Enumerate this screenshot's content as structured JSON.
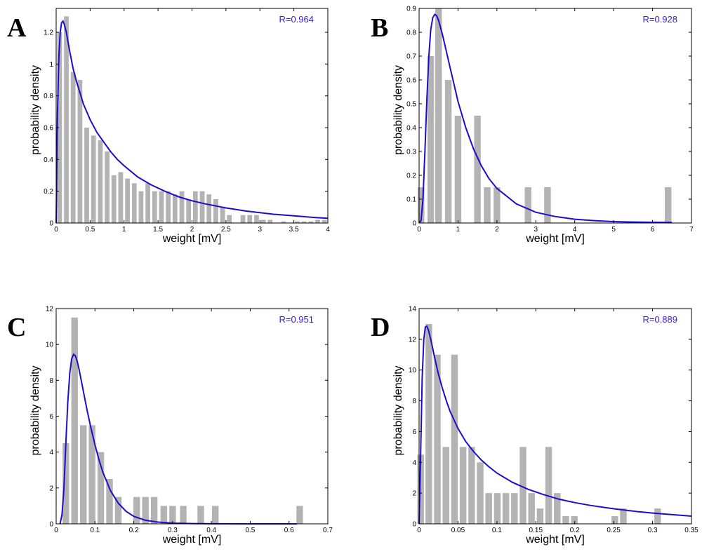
{
  "colors": {
    "bar": "#b3b3b3",
    "curve": "#1a0dcc",
    "annotation": "#3a1ae0",
    "axis": "#000000"
  },
  "chart_data": [
    {
      "id": "A",
      "type": "bar",
      "panel_label": "A",
      "annotation": "R=0.964",
      "xlabel": "weight [mV]",
      "ylabel": "probability density",
      "xlim": [
        0,
        4
      ],
      "ylim": [
        0,
        1.35
      ],
      "xticks": [
        0,
        0.5,
        1,
        1.5,
        2,
        2.5,
        3,
        3.5,
        4
      ],
      "xtick_labels": [
        "0",
        "0.5",
        "1",
        "1.5",
        "2",
        "2.5",
        "3",
        "3.5",
        "4"
      ],
      "yticks": [
        0,
        0.2,
        0.4,
        0.6,
        0.8,
        1,
        1.2
      ],
      "ytick_labels": [
        "0",
        "0.2",
        "0.4",
        "0.6",
        "0.8",
        "1",
        "1.2"
      ],
      "bar_width": 0.07,
      "bars_x": [
        0.05,
        0.15,
        0.25,
        0.35,
        0.45,
        0.55,
        0.65,
        0.75,
        0.85,
        0.95,
        1.05,
        1.15,
        1.25,
        1.35,
        1.45,
        1.55,
        1.65,
        1.75,
        1.85,
        1.95,
        2.05,
        2.15,
        2.25,
        2.35,
        2.45,
        2.55,
        2.65,
        2.75,
        2.85,
        2.95,
        3.05,
        3.15,
        3.25,
        3.35,
        3.45,
        3.55,
        3.65,
        3.75,
        3.85,
        3.95
      ],
      "bars_y": [
        1.2,
        1.3,
        0.95,
        0.9,
        0.6,
        0.55,
        0.52,
        0.45,
        0.3,
        0.32,
        0.28,
        0.25,
        0.2,
        0.25,
        0.2,
        0.2,
        0.2,
        0.18,
        0.2,
        0.15,
        0.2,
        0.2,
        0.18,
        0.15,
        0.1,
        0.05,
        0,
        0.05,
        0.05,
        0.05,
        0.02,
        0.02,
        0,
        0.01,
        0,
        0.01,
        0.01,
        0.01,
        0.02,
        0.02
      ],
      "curve": {
        "x": [
          0,
          0.02,
          0.04,
          0.06,
          0.08,
          0.1,
          0.12,
          0.15,
          0.2,
          0.25,
          0.3,
          0.35,
          0.4,
          0.5,
          0.6,
          0.7,
          0.8,
          0.9,
          1,
          1.2,
          1.4,
          1.6,
          1.8,
          2,
          2.2,
          2.5,
          2.8,
          3,
          3.2,
          3.5,
          3.8,
          4
        ],
        "y": [
          0,
          0.7,
          1.05,
          1.2,
          1.26,
          1.27,
          1.25,
          1.2,
          1.08,
          0.97,
          0.89,
          0.82,
          0.75,
          0.65,
          0.57,
          0.51,
          0.45,
          0.4,
          0.36,
          0.29,
          0.24,
          0.2,
          0.165,
          0.14,
          0.12,
          0.095,
          0.075,
          0.065,
          0.055,
          0.045,
          0.035,
          0.03
        ]
      }
    },
    {
      "id": "B",
      "type": "bar",
      "panel_label": "B",
      "annotation": "R=0.928",
      "xlabel": "weight [mV]",
      "ylabel": "probability density",
      "xlim": [
        0,
        7
      ],
      "ylim": [
        0,
        0.9
      ],
      "xticks": [
        0,
        1,
        2,
        3,
        4,
        5,
        6,
        7
      ],
      "xtick_labels": [
        "0",
        "1",
        "2",
        "3",
        "4",
        "5",
        "6",
        "7"
      ],
      "yticks": [
        0,
        0.1,
        0.2,
        0.3,
        0.4,
        0.5,
        0.6,
        0.7,
        0.8,
        0.9
      ],
      "ytick_labels": [
        "0",
        "0.1",
        "0.2",
        "0.3",
        "0.4",
        "0.5",
        "0.6",
        "0.7",
        "0.8",
        "0.9"
      ],
      "bar_width": 0.17,
      "bars_x": [
        0.05,
        0.3,
        0.5,
        0.75,
        1.0,
        1.5,
        1.75,
        2.0,
        2.8,
        3.3,
        6.4
      ],
      "bars_y": [
        0.15,
        0.7,
        0.9,
        0.6,
        0.45,
        0.45,
        0.15,
        0.15,
        0.15,
        0.15,
        0.15
      ],
      "curve": {
        "x": [
          0,
          0.05,
          0.1,
          0.15,
          0.2,
          0.25,
          0.3,
          0.35,
          0.4,
          0.45,
          0.5,
          0.6,
          0.7,
          0.8,
          0.9,
          1.0,
          1.2,
          1.4,
          1.6,
          1.8,
          2.0,
          2.5,
          3.0,
          3.5,
          4.0,
          4.5,
          5.0,
          5.5,
          6.0,
          6.5
        ],
        "y": [
          0,
          0.01,
          0.1,
          0.3,
          0.52,
          0.7,
          0.81,
          0.86,
          0.875,
          0.87,
          0.85,
          0.79,
          0.72,
          0.65,
          0.58,
          0.51,
          0.4,
          0.31,
          0.24,
          0.185,
          0.145,
          0.08,
          0.045,
          0.027,
          0.016,
          0.01,
          0.006,
          0.004,
          0.003,
          0.002
        ]
      }
    },
    {
      "id": "C",
      "type": "bar",
      "panel_label": "C",
      "annotation": "R=0.951",
      "xlabel": "weight [mV]",
      "ylabel": "probability density",
      "xlim": [
        0,
        0.7
      ],
      "ylim": [
        0,
        12
      ],
      "xticks": [
        0,
        0.1,
        0.2,
        0.3,
        0.4,
        0.5,
        0.6,
        0.7
      ],
      "xtick_labels": [
        "0",
        "0.1",
        "0.2",
        "0.3",
        "0.4",
        "0.5",
        "0.6",
        "0.7"
      ],
      "yticks": [
        0,
        2,
        4,
        6,
        8,
        10,
        12
      ],
      "ytick_labels": [
        "0",
        "2",
        "4",
        "6",
        "8",
        "10",
        "12"
      ],
      "bar_width": 0.017,
      "bars_x": [
        0.025,
        0.0475,
        0.07,
        0.0925,
        0.115,
        0.1375,
        0.16,
        0.2075,
        0.23,
        0.2525,
        0.2775,
        0.3,
        0.3275,
        0.3725,
        0.41,
        0.6275
      ],
      "bars_y": [
        4.5,
        11.5,
        5.5,
        5.5,
        4,
        2.5,
        1.5,
        1.5,
        1.5,
        1.5,
        1,
        1,
        1,
        1,
        1,
        1
      ],
      "curve": {
        "x": [
          0.01,
          0.015,
          0.02,
          0.025,
          0.03,
          0.035,
          0.04,
          0.045,
          0.05,
          0.055,
          0.06,
          0.07,
          0.08,
          0.09,
          0.1,
          0.11,
          0.12,
          0.14,
          0.16,
          0.18,
          0.2,
          0.23,
          0.26,
          0.3,
          0.35,
          0.4,
          0.5,
          0.62
        ],
        "y": [
          0,
          0.5,
          2,
          4.5,
          6.8,
          8.4,
          9.2,
          9.45,
          9.35,
          9.0,
          8.5,
          7.4,
          6.3,
          5.3,
          4.4,
          3.6,
          2.9,
          1.85,
          1.15,
          0.7,
          0.42,
          0.2,
          0.1,
          0.04,
          0.015,
          0.005,
          0.001,
          0.0
        ]
      }
    },
    {
      "id": "D",
      "type": "bar",
      "panel_label": "D",
      "annotation": "R=0.889",
      "xlabel": "weight [mV]",
      "ylabel": "probability density",
      "xlim": [
        0,
        0.35
      ],
      "ylim": [
        0,
        14
      ],
      "xticks": [
        0,
        0.05,
        0.1,
        0.15,
        0.2,
        0.25,
        0.3,
        0.35
      ],
      "xtick_labels": [
        "0",
        "0.05",
        "0.1",
        "0.15",
        "0.2",
        "0.25",
        "0.3",
        "0.35"
      ],
      "yticks": [
        0,
        2,
        4,
        6,
        8,
        10,
        12,
        14
      ],
      "ytick_labels": [
        "0",
        "2",
        "4",
        "6",
        "8",
        "10",
        "12",
        "14"
      ],
      "bar_width": 0.0085,
      "bars_x": [
        0.002,
        0.0125,
        0.0235,
        0.0345,
        0.0455,
        0.0565,
        0.0675,
        0.0785,
        0.0895,
        0.1005,
        0.1115,
        0.1225,
        0.1335,
        0.1445,
        0.1555,
        0.1665,
        0.1775,
        0.1885,
        0.1995,
        0.2515,
        0.2625,
        0.3065
      ],
      "bars_y": [
        4.5,
        13,
        11,
        5,
        11,
        5,
        5,
        4,
        2,
        2,
        2,
        2,
        5,
        2,
        1,
        5,
        2,
        0.5,
        0.5,
        0.5,
        1,
        1
      ],
      "curve": {
        "x": [
          0,
          0.002,
          0.004,
          0.006,
          0.008,
          0.01,
          0.012,
          0.015,
          0.02,
          0.025,
          0.03,
          0.035,
          0.04,
          0.05,
          0.06,
          0.07,
          0.08,
          0.09,
          0.1,
          0.12,
          0.14,
          0.16,
          0.18,
          0.2,
          0.22,
          0.25,
          0.28,
          0.3,
          0.32,
          0.35
        ],
        "y": [
          0,
          4.5,
          9.5,
          12.0,
          12.8,
          12.85,
          12.6,
          12.0,
          10.8,
          9.7,
          8.8,
          8.0,
          7.3,
          6.2,
          5.35,
          4.7,
          4.15,
          3.7,
          3.3,
          2.7,
          2.25,
          1.9,
          1.6,
          1.38,
          1.2,
          0.98,
          0.8,
          0.7,
          0.62,
          0.5
        ]
      }
    }
  ]
}
